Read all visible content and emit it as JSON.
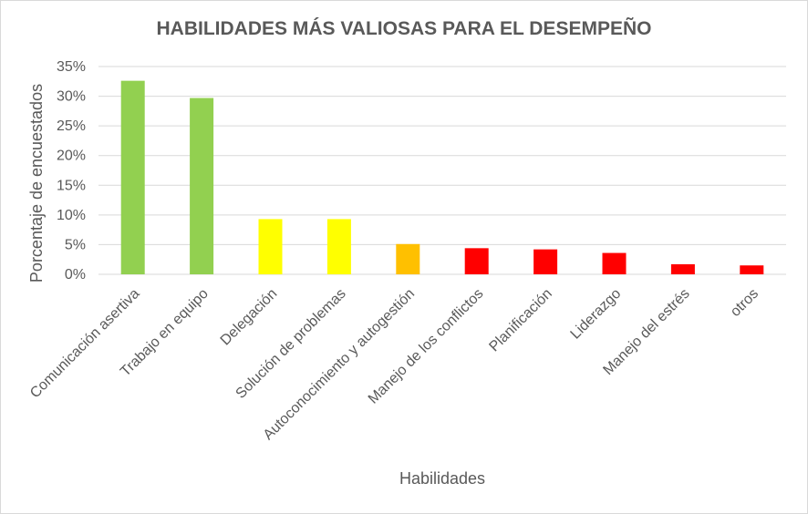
{
  "chart_data": {
    "type": "bar",
    "title": "HABILIDADES MÁS VALIOSAS PARA EL DESEMPEÑO",
    "xlabel": "Habilidades",
    "ylabel": "Porcentaje de encuestados",
    "ylim": [
      0,
      35
    ],
    "yticks": [
      "0%",
      "5%",
      "10%",
      "15%",
      "20%",
      "25%",
      "30%",
      "35%"
    ],
    "grid": true,
    "legend": "none",
    "categories": [
      "Comunicación asertiva",
      "Trabajo en equipo",
      "Delegación",
      "Solución de problemas",
      "Autoconocimiento y autogestión",
      "Manejo de los conflictos",
      "Planificación",
      "Liderazgo",
      "Manejo del estrés",
      "otros"
    ],
    "values": [
      32.6,
      29.7,
      9.3,
      9.3,
      5.1,
      4.4,
      4.2,
      3.6,
      1.7,
      1.5
    ],
    "colors": [
      "#92d050",
      "#92d050",
      "#ffff00",
      "#ffff00",
      "#ffc000",
      "#ff0000",
      "#ff0000",
      "#ff0000",
      "#ff0000",
      "#ff0000"
    ]
  }
}
